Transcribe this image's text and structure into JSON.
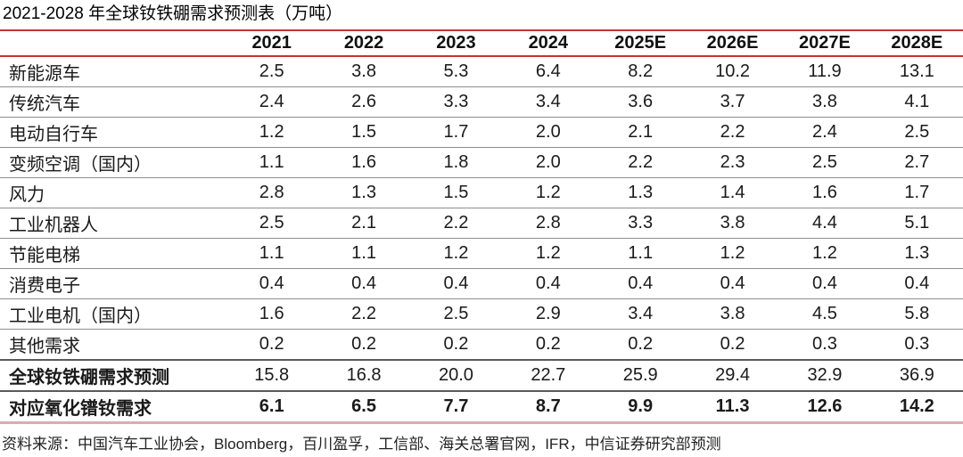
{
  "title": "2021-2028 年全球钕铁硼需求预测表（万吨）",
  "source_note": "资料来源：中国汽车工业协会，Bloomberg，百川盈孚，工信部、海关总署官网，IFR，中信证券研究部预测",
  "colors": {
    "header_rule_red": "#c5342f",
    "bottom_rule_pink": "#dcabaf",
    "row_rule_gray": "#8e8e8e",
    "total_rule_dark": "#5a5a5a",
    "text": "#1a1a1a",
    "background": "#ffffff"
  },
  "chart_data": {
    "type": "table",
    "title": "2021-2028 年全球钕铁硼需求预测表（万吨）",
    "unit": "万吨",
    "columns": [
      "2021",
      "2022",
      "2023",
      "2024",
      "2025E",
      "2026E",
      "2027E",
      "2028E"
    ],
    "rows": [
      {
        "label": "新能源车",
        "values": [
          "2.5",
          "3.8",
          "5.3",
          "6.4",
          "8.2",
          "10.2",
          "11.9",
          "13.1"
        ],
        "bold_label": false,
        "bold_values": false,
        "total": false
      },
      {
        "label": "传统汽车",
        "values": [
          "2.4",
          "2.6",
          "3.3",
          "3.4",
          "3.6",
          "3.7",
          "3.8",
          "4.1"
        ],
        "bold_label": false,
        "bold_values": false,
        "total": false
      },
      {
        "label": "电动自行车",
        "values": [
          "1.2",
          "1.5",
          "1.7",
          "2.0",
          "2.1",
          "2.2",
          "2.4",
          "2.5"
        ],
        "bold_label": false,
        "bold_values": false,
        "total": false
      },
      {
        "label": "变频空调（国内）",
        "values": [
          "1.1",
          "1.6",
          "1.8",
          "2.0",
          "2.2",
          "2.3",
          "2.5",
          "2.7"
        ],
        "bold_label": false,
        "bold_values": false,
        "total": false
      },
      {
        "label": "风力",
        "values": [
          "2.8",
          "1.3",
          "1.5",
          "1.2",
          "1.3",
          "1.4",
          "1.6",
          "1.7"
        ],
        "bold_label": false,
        "bold_values": false,
        "total": false
      },
      {
        "label": "工业机器人",
        "values": [
          "2.5",
          "2.1",
          "2.2",
          "2.8",
          "3.3",
          "3.8",
          "4.4",
          "5.1"
        ],
        "bold_label": false,
        "bold_values": false,
        "total": false
      },
      {
        "label": "节能电梯",
        "values": [
          "1.1",
          "1.1",
          "1.2",
          "1.2",
          "1.1",
          "1.2",
          "1.2",
          "1.3"
        ],
        "bold_label": false,
        "bold_values": false,
        "total": false
      },
      {
        "label": "消费电子",
        "values": [
          "0.4",
          "0.4",
          "0.4",
          "0.4",
          "0.4",
          "0.4",
          "0.4",
          "0.4"
        ],
        "bold_label": false,
        "bold_values": false,
        "total": false
      },
      {
        "label": "工业电机（国内）",
        "values": [
          "1.6",
          "2.2",
          "2.5",
          "2.9",
          "3.4",
          "3.8",
          "4.5",
          "5.8"
        ],
        "bold_label": false,
        "bold_values": false,
        "total": false
      },
      {
        "label": "其他需求",
        "values": [
          "0.2",
          "0.2",
          "0.2",
          "0.2",
          "0.2",
          "0.2",
          "0.3",
          "0.3"
        ],
        "bold_label": false,
        "bold_values": false,
        "total": false
      },
      {
        "label": "全球钕铁硼需求预测",
        "values": [
          "15.8",
          "16.8",
          "20.0",
          "22.7",
          "25.9",
          "29.4",
          "32.9",
          "36.9"
        ],
        "bold_label": true,
        "bold_values": false,
        "total": true
      },
      {
        "label": "对应氧化镨钕需求",
        "values": [
          "6.1",
          "6.5",
          "7.7",
          "8.7",
          "9.9",
          "11.3",
          "12.6",
          "14.2"
        ],
        "bold_label": true,
        "bold_values": true,
        "total": true
      }
    ],
    "source": "资料来源：中国汽车工业协会，Bloomberg，百川盈孚，工信部、海关总署官网，IFR，中信证券研究部预测"
  }
}
